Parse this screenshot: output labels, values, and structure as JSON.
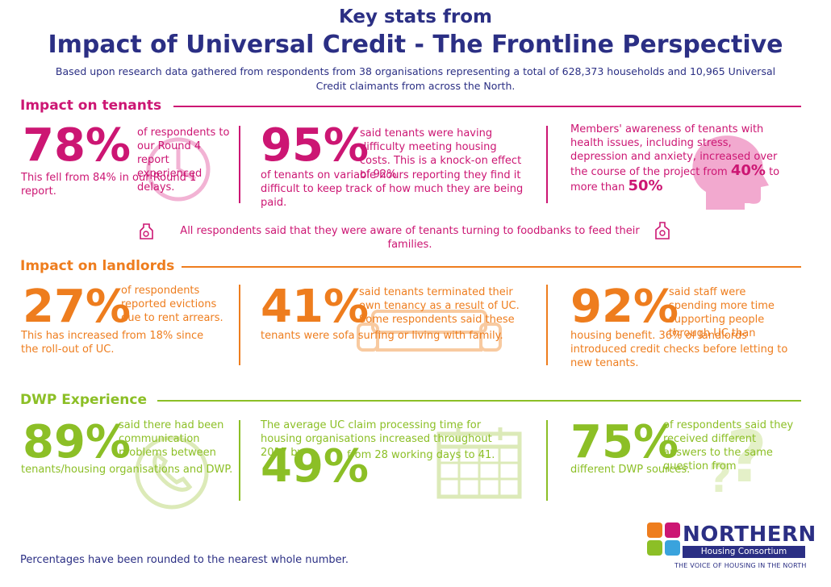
{
  "header": {
    "subtitle": "Key stats from",
    "title": "Impact of Universal Credit - The Frontline Perspective",
    "intro": "Based upon research data gathered from respondents from 38 organisations representing a total of 628,373 households and 10,965 Universal Credit claimants from across the North."
  },
  "colors": {
    "pink": "#cc1673",
    "orange": "#ee7d1e",
    "green": "#8cbf26",
    "navy": "#2b2f84"
  },
  "tenants": {
    "title": "Impact on tenants",
    "s1": {
      "pct": "78%",
      "text_right": "of respondents to our Round 4 report experienced delays.",
      "text_below": "This fell from 84% in our Round 1 report.",
      "icon": "clock-icon"
    },
    "s2": {
      "pct": "95%",
      "text_right": "said tenants were having difficulty meeting housing costs. This is a knock-on effect of 92%",
      "text_below": "of tenants on variable hours reporting they find it difficult to keep track of how much they are being paid."
    },
    "s3": {
      "text": "Members' awareness of tenants with health issues, including stress, depression and anxiety, increased over the course of the project from",
      "from": "40%",
      "mid": "to more than",
      "to": "50%",
      "icon": "head-icon"
    },
    "foodbank": "All respondents said that they were aware of tenants turning to foodbanks to feed their families."
  },
  "landlords": {
    "title": "Impact on landlords",
    "s1": {
      "pct": "27%",
      "text_right": "of respondents reported evictions due to rent arrears.",
      "text_below": "This has increased from 18% since the roll-out of UC."
    },
    "s2": {
      "pct": "41%",
      "text_right": "said tenants terminated their own tenancy as a result of UC. Some respondents said these",
      "text_below": "tenants were sofa surfing or living with family.",
      "icon": "sofa-icon"
    },
    "s3": {
      "pct": "92%",
      "text_right": "said staff were spending more time supporting people through UC than",
      "text_below": "housing benefit. 36% of landlords introduced credit checks before letting to new tenants."
    }
  },
  "dwp": {
    "title": "DWP Experience",
    "s1": {
      "pct": "89%",
      "text_right": "said there had been communication problems between",
      "text_below": "tenants/housing organisations and DWP.",
      "icon": "phone-icon"
    },
    "s2": {
      "text_top": "The average UC claim processing time for housing organisations increased throughout 2017 by",
      "pct": "49%",
      "text_right": "from 28 working days to 41.",
      "icon": "calendar-icon"
    },
    "s3": {
      "pct": "75%",
      "text_right": "of respondents said they received different answers to the same question from",
      "text_below": "different DWP sources.",
      "icon": "question-icon"
    }
  },
  "footer": {
    "note": "Percentages have been rounded to the nearest whole number."
  },
  "logo": {
    "name": "NORTHERN",
    "sub": "Housing Consortium",
    "tagline": "THE VOICE OF HOUSING IN THE NORTH"
  }
}
